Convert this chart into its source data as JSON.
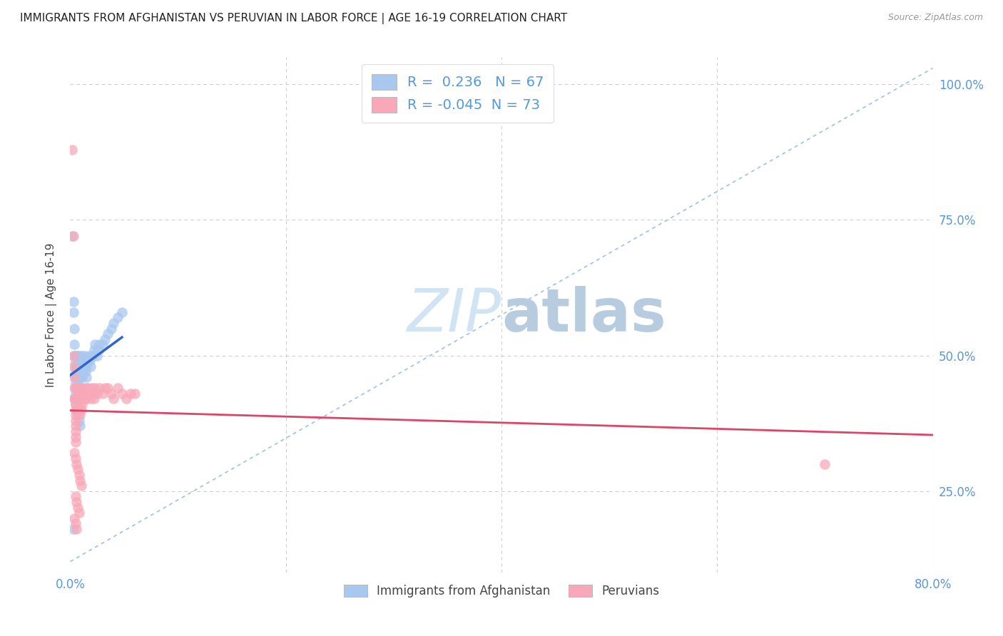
{
  "title": "IMMIGRANTS FROM AFGHANISTAN VS PERUVIAN IN LABOR FORCE | AGE 16-19 CORRELATION CHART",
  "source": "Source: ZipAtlas.com",
  "ylabel_label": "In Labor Force | Age 16-19",
  "legend_label1": "Immigrants from Afghanistan",
  "legend_label2": "Peruvians",
  "R1": 0.236,
  "N1": 67,
  "R2": -0.045,
  "N2": 73,
  "blue_color": "#a8c8f0",
  "pink_color": "#f8a8b8",
  "blue_line_color": "#3366cc",
  "pink_line_color": "#dd4466",
  "diagonal_color": "#a0c0e0",
  "watermark_color": "#d0e4f4",
  "axis_tick_color": "#5599dd",
  "title_color": "#222222",
  "source_color": "#999999",
  "xmin": 0.0,
  "xmax": 0.8,
  "ymin": 0.1,
  "ymax": 1.05,
  "blue_scatter_x": [
    0.002,
    0.003,
    0.003,
    0.004,
    0.004,
    0.004,
    0.005,
    0.005,
    0.005,
    0.005,
    0.005,
    0.005,
    0.005,
    0.005,
    0.006,
    0.006,
    0.006,
    0.007,
    0.007,
    0.007,
    0.007,
    0.008,
    0.008,
    0.008,
    0.008,
    0.009,
    0.009,
    0.009,
    0.01,
    0.01,
    0.01,
    0.01,
    0.011,
    0.011,
    0.012,
    0.012,
    0.013,
    0.013,
    0.014,
    0.014,
    0.015,
    0.015,
    0.016,
    0.017,
    0.018,
    0.019,
    0.02,
    0.021,
    0.022,
    0.023,
    0.025,
    0.026,
    0.027,
    0.03,
    0.032,
    0.035,
    0.038,
    0.04,
    0.044,
    0.048,
    0.004,
    0.005,
    0.006,
    0.007,
    0.008,
    0.009,
    0.003
  ],
  "blue_scatter_y": [
    0.72,
    0.6,
    0.58,
    0.55,
    0.52,
    0.5,
    0.5,
    0.49,
    0.48,
    0.47,
    0.46,
    0.45,
    0.44,
    0.43,
    0.5,
    0.48,
    0.46,
    0.5,
    0.48,
    0.46,
    0.44,
    0.5,
    0.48,
    0.46,
    0.44,
    0.48,
    0.46,
    0.44,
    0.5,
    0.48,
    0.46,
    0.44,
    0.48,
    0.46,
    0.49,
    0.47,
    0.5,
    0.48,
    0.49,
    0.47,
    0.48,
    0.46,
    0.49,
    0.5,
    0.49,
    0.48,
    0.5,
    0.5,
    0.51,
    0.52,
    0.5,
    0.51,
    0.52,
    0.52,
    0.53,
    0.54,
    0.55,
    0.56,
    0.57,
    0.58,
    0.42,
    0.41,
    0.4,
    0.39,
    0.38,
    0.37,
    0.18
  ],
  "pink_scatter_x": [
    0.002,
    0.003,
    0.003,
    0.004,
    0.004,
    0.004,
    0.005,
    0.005,
    0.005,
    0.005,
    0.005,
    0.005,
    0.005,
    0.005,
    0.005,
    0.006,
    0.006,
    0.006,
    0.007,
    0.007,
    0.007,
    0.008,
    0.008,
    0.008,
    0.009,
    0.009,
    0.009,
    0.01,
    0.01,
    0.01,
    0.011,
    0.011,
    0.012,
    0.013,
    0.014,
    0.015,
    0.015,
    0.016,
    0.017,
    0.018,
    0.019,
    0.02,
    0.021,
    0.022,
    0.023,
    0.025,
    0.027,
    0.03,
    0.032,
    0.035,
    0.038,
    0.04,
    0.044,
    0.048,
    0.052,
    0.056,
    0.06,
    0.004,
    0.005,
    0.006,
    0.007,
    0.008,
    0.009,
    0.01,
    0.005,
    0.006,
    0.007,
    0.008,
    0.004,
    0.005,
    0.006,
    0.7,
    0.003
  ],
  "pink_scatter_y": [
    0.88,
    0.5,
    0.48,
    0.46,
    0.44,
    0.42,
    0.42,
    0.41,
    0.4,
    0.39,
    0.38,
    0.37,
    0.36,
    0.35,
    0.34,
    0.44,
    0.42,
    0.4,
    0.44,
    0.42,
    0.4,
    0.44,
    0.42,
    0.4,
    0.43,
    0.41,
    0.39,
    0.44,
    0.42,
    0.4,
    0.43,
    0.41,
    0.44,
    0.43,
    0.42,
    0.44,
    0.42,
    0.43,
    0.44,
    0.43,
    0.42,
    0.44,
    0.43,
    0.42,
    0.44,
    0.43,
    0.44,
    0.43,
    0.44,
    0.44,
    0.43,
    0.42,
    0.44,
    0.43,
    0.42,
    0.43,
    0.43,
    0.32,
    0.31,
    0.3,
    0.29,
    0.28,
    0.27,
    0.26,
    0.24,
    0.23,
    0.22,
    0.21,
    0.2,
    0.19,
    0.18,
    0.3,
    0.72
  ]
}
